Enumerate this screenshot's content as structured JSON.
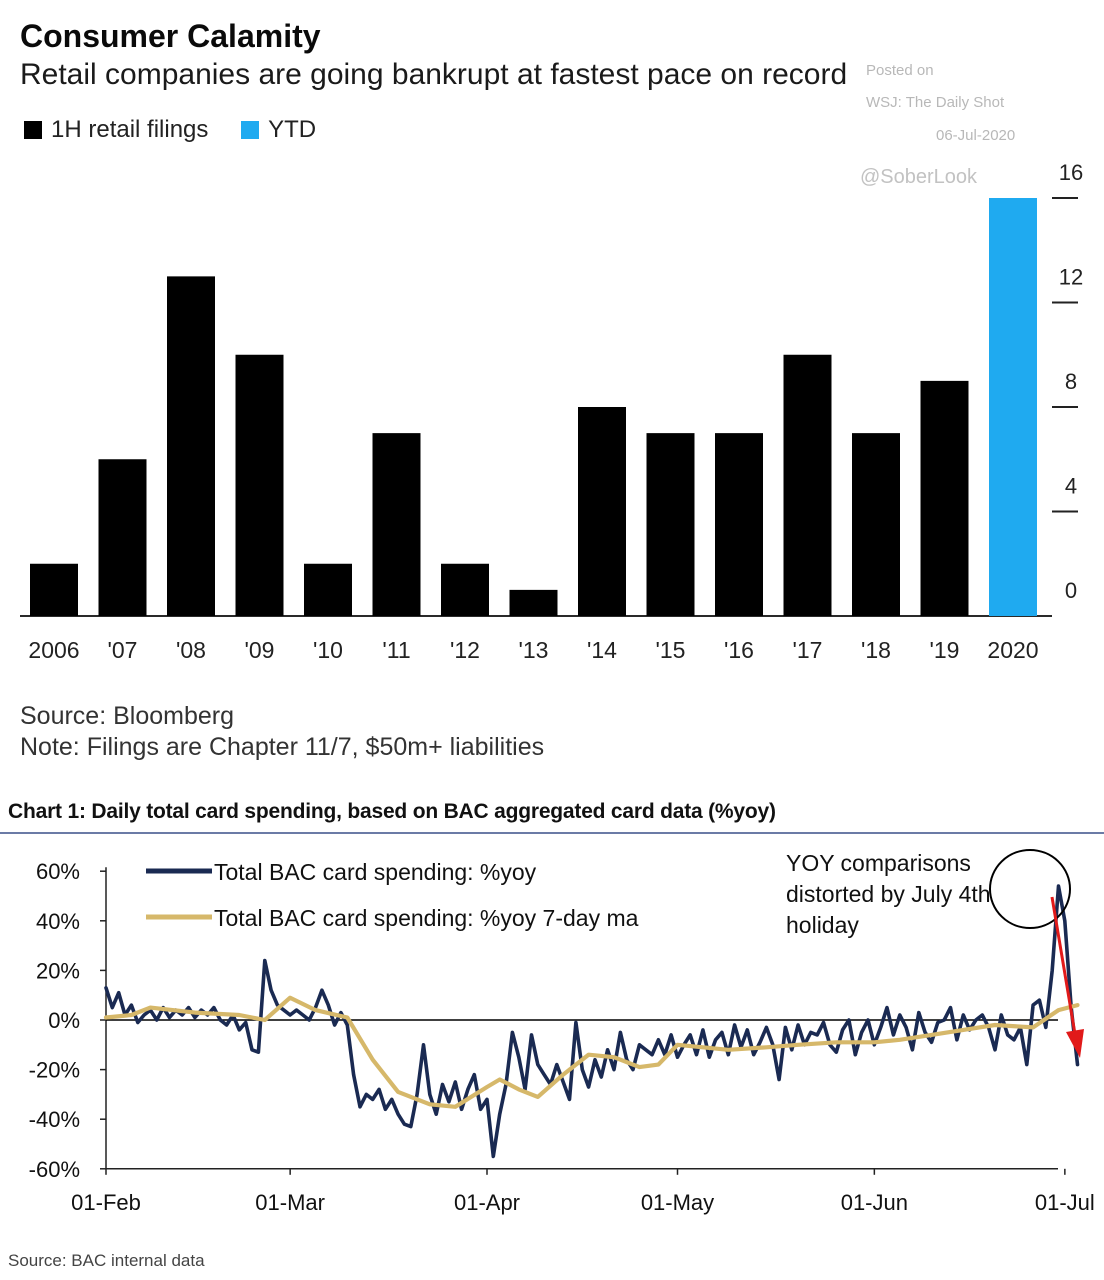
{
  "top": {
    "title": "Consumer Calamity",
    "subtitle": "Retail companies are going bankrupt at fastest pace on record",
    "watermark": {
      "posted": "Posted on",
      "wsj": "WSJ: The Daily Shot",
      "date": "06-Jul-2020",
      "handle": "@SoberLook"
    },
    "source": "Source: Bloomberg",
    "note": "Note: Filings are Chapter 11/7, $50m+ liabilities"
  },
  "bottom": {
    "title": "Chart 1: Daily total card spending, based on BAC aggregated card data (%yoy)",
    "annotation": [
      "YOY comparisons",
      "distorted by July 4th",
      "holiday"
    ],
    "source": "Source: BAC internal data"
  },
  "colors": {
    "filings": "#000000",
    "ytd": "#1faaf0",
    "daily": "#1a2a52",
    "ma": "#d6b86a",
    "arrow": "#e11a1a",
    "circle": "#000000"
  },
  "chart_data": [
    {
      "type": "bar",
      "categories": [
        "2006",
        "'07",
        "'08",
        "'09",
        "'10",
        "'11",
        "'12",
        "'13",
        "'14",
        "'15",
        "'16",
        "'17",
        "'18",
        "'19",
        "2020"
      ],
      "series": [
        {
          "name": "1H retail filings",
          "values": [
            2,
            6,
            13,
            10,
            2,
            7,
            2,
            1,
            8,
            7,
            7,
            10,
            7,
            9,
            null
          ]
        },
        {
          "name": "YTD",
          "values": [
            null,
            null,
            null,
            null,
            null,
            null,
            null,
            null,
            null,
            null,
            null,
            null,
            null,
            null,
            16
          ]
        }
      ],
      "yticks": [
        0,
        4,
        8,
        12,
        16
      ],
      "ylim": [
        0,
        16
      ],
      "xlabel": "",
      "ylabel": "",
      "legend": "top-left",
      "grid": false,
      "axis_side": "right"
    },
    {
      "type": "line",
      "x_unit": "date (2020)",
      "xticks": [
        "01-Feb",
        "01-Mar",
        "01-Apr",
        "01-May",
        "01-Jun",
        "01-Jul"
      ],
      "yticks": [
        "60%",
        "40%",
        "20%",
        "0%",
        "-20%",
        "-40%",
        "-60%"
      ],
      "ylim": [
        -60,
        60
      ],
      "legend": "top-left",
      "grid": false,
      "series": [
        {
          "name": "Total BAC card spending: %yoy",
          "points": [
            [
              "2020-02-01",
              13
            ],
            [
              "2020-02-02",
              5
            ],
            [
              "2020-02-03",
              11
            ],
            [
              "2020-02-04",
              2
            ],
            [
              "2020-02-05",
              6
            ],
            [
              "2020-02-06",
              -1
            ],
            [
              "2020-02-07",
              2
            ],
            [
              "2020-02-08",
              4
            ],
            [
              "2020-02-09",
              0
            ],
            [
              "2020-02-10",
              5
            ],
            [
              "2020-02-11",
              1
            ],
            [
              "2020-02-12",
              4
            ],
            [
              "2020-02-13",
              2
            ],
            [
              "2020-02-14",
              5
            ],
            [
              "2020-02-15",
              1
            ],
            [
              "2020-02-16",
              4
            ],
            [
              "2020-02-17",
              2
            ],
            [
              "2020-02-18",
              5
            ],
            [
              "2020-02-19",
              0
            ],
            [
              "2020-02-20",
              -2
            ],
            [
              "2020-02-21",
              2
            ],
            [
              "2020-02-22",
              -4
            ],
            [
              "2020-02-23",
              -1
            ],
            [
              "2020-02-24",
              -12
            ],
            [
              "2020-02-25",
              -13
            ],
            [
              "2020-02-26",
              24
            ],
            [
              "2020-02-27",
              12
            ],
            [
              "2020-02-28",
              6
            ],
            [
              "2020-02-29",
              4
            ],
            [
              "2020-03-01",
              2
            ],
            [
              "2020-03-02",
              4
            ],
            [
              "2020-03-03",
              2
            ],
            [
              "2020-03-04",
              0
            ],
            [
              "2020-03-05",
              5
            ],
            [
              "2020-03-06",
              12
            ],
            [
              "2020-03-07",
              6
            ],
            [
              "2020-03-08",
              -2
            ],
            [
              "2020-03-09",
              3
            ],
            [
              "2020-03-10",
              -2
            ],
            [
              "2020-03-11",
              -22
            ],
            [
              "2020-03-12",
              -35
            ],
            [
              "2020-03-13",
              -30
            ],
            [
              "2020-03-14",
              -32
            ],
            [
              "2020-03-15",
              -28
            ],
            [
              "2020-03-16",
              -36
            ],
            [
              "2020-03-17",
              -32
            ],
            [
              "2020-03-18",
              -38
            ],
            [
              "2020-03-19",
              -42
            ],
            [
              "2020-03-20",
              -43
            ],
            [
              "2020-03-21",
              -30
            ],
            [
              "2020-03-22",
              -10
            ],
            [
              "2020-03-23",
              -30
            ],
            [
              "2020-03-24",
              -38
            ],
            [
              "2020-03-25",
              -26
            ],
            [
              "2020-03-26",
              -33
            ],
            [
              "2020-03-27",
              -25
            ],
            [
              "2020-03-28",
              -36
            ],
            [
              "2020-03-29",
              -28
            ],
            [
              "2020-03-30",
              -22
            ],
            [
              "2020-03-31",
              -36
            ],
            [
              "2020-04-01",
              -32
            ],
            [
              "2020-04-02",
              -55
            ],
            [
              "2020-04-03",
              -38
            ],
            [
              "2020-04-04",
              -26
            ],
            [
              "2020-04-05",
              -5
            ],
            [
              "2020-04-06",
              -15
            ],
            [
              "2020-04-07",
              -28
            ],
            [
              "2020-04-08",
              -6
            ],
            [
              "2020-04-09",
              -18
            ],
            [
              "2020-04-10",
              -22
            ],
            [
              "2020-04-11",
              -26
            ],
            [
              "2020-04-12",
              -18
            ],
            [
              "2020-04-13",
              -25
            ],
            [
              "2020-04-14",
              -32
            ],
            [
              "2020-04-15",
              -1
            ],
            [
              "2020-04-16",
              -20
            ],
            [
              "2020-04-17",
              -27
            ],
            [
              "2020-04-18",
              -16
            ],
            [
              "2020-04-19",
              -23
            ],
            [
              "2020-04-20",
              -12
            ],
            [
              "2020-04-21",
              -20
            ],
            [
              "2020-04-22",
              -5
            ],
            [
              "2020-04-23",
              -16
            ],
            [
              "2020-04-24",
              -20
            ],
            [
              "2020-04-25",
              -10
            ],
            [
              "2020-04-26",
              -12
            ],
            [
              "2020-04-27",
              -14
            ],
            [
              "2020-04-28",
              -8
            ],
            [
              "2020-04-29",
              -14
            ],
            [
              "2020-04-30",
              -6
            ],
            [
              "2020-05-01",
              -15
            ],
            [
              "2020-05-02",
              -10
            ],
            [
              "2020-05-03",
              -6
            ],
            [
              "2020-05-04",
              -14
            ],
            [
              "2020-05-05",
              -4
            ],
            [
              "2020-05-06",
              -15
            ],
            [
              "2020-05-07",
              -8
            ],
            [
              "2020-05-08",
              -5
            ],
            [
              "2020-05-09",
              -14
            ],
            [
              "2020-05-10",
              -2
            ],
            [
              "2020-05-11",
              -11
            ],
            [
              "2020-05-12",
              -4
            ],
            [
              "2020-05-13",
              -14
            ],
            [
              "2020-05-14",
              -9
            ],
            [
              "2020-05-15",
              -3
            ],
            [
              "2020-05-16",
              -10
            ],
            [
              "2020-05-17",
              -24
            ],
            [
              "2020-05-18",
              -3
            ],
            [
              "2020-05-19",
              -12
            ],
            [
              "2020-05-20",
              -2
            ],
            [
              "2020-05-21",
              -10
            ],
            [
              "2020-05-22",
              -5
            ],
            [
              "2020-05-23",
              -6
            ],
            [
              "2020-05-24",
              -1
            ],
            [
              "2020-05-25",
              -10
            ],
            [
              "2020-05-26",
              -13
            ],
            [
              "2020-05-27",
              -4
            ],
            [
              "2020-05-28",
              0
            ],
            [
              "2020-05-29",
              -14
            ],
            [
              "2020-05-30",
              -5
            ],
            [
              "2020-05-31",
              0
            ],
            [
              "2020-06-01",
              -10
            ],
            [
              "2020-06-02",
              -3
            ],
            [
              "2020-06-03",
              5
            ],
            [
              "2020-06-04",
              -6
            ],
            [
              "2020-06-05",
              2
            ],
            [
              "2020-06-06",
              -3
            ],
            [
              "2020-06-07",
              -12
            ],
            [
              "2020-06-08",
              3
            ],
            [
              "2020-06-09",
              -5
            ],
            [
              "2020-06-10",
              -9
            ],
            [
              "2020-06-11",
              -1
            ],
            [
              "2020-06-12",
              0
            ],
            [
              "2020-06-13",
              5
            ],
            [
              "2020-06-14",
              -8
            ],
            [
              "2020-06-15",
              2
            ],
            [
              "2020-06-16",
              -4
            ],
            [
              "2020-06-17",
              0
            ],
            [
              "2020-06-18",
              2
            ],
            [
              "2020-06-19",
              -3
            ],
            [
              "2020-06-20",
              -12
            ],
            [
              "2020-06-21",
              2
            ],
            [
              "2020-06-22",
              -6
            ],
            [
              "2020-06-23",
              -8
            ],
            [
              "2020-06-24",
              -3
            ],
            [
              "2020-06-25",
              -18
            ],
            [
              "2020-06-26",
              6
            ],
            [
              "2020-06-27",
              8
            ],
            [
              "2020-06-28",
              -3
            ],
            [
              "2020-06-29",
              20
            ],
            [
              "2020-06-30",
              54
            ],
            [
              "2020-07-01",
              40
            ],
            [
              "2020-07-02",
              5
            ],
            [
              "2020-07-03",
              -18
            ]
          ]
        },
        {
          "name": "Total BAC card spending: %yoy 7-day ma",
          "points": [
            [
              "2020-02-01",
              1
            ],
            [
              "2020-02-05",
              2
            ],
            [
              "2020-02-08",
              5
            ],
            [
              "2020-02-15",
              3
            ],
            [
              "2020-02-22",
              2
            ],
            [
              "2020-02-26",
              0
            ],
            [
              "2020-03-01",
              9
            ],
            [
              "2020-03-05",
              4
            ],
            [
              "2020-03-10",
              1
            ],
            [
              "2020-03-14",
              -16
            ],
            [
              "2020-03-18",
              -29
            ],
            [
              "2020-03-23",
              -34
            ],
            [
              "2020-03-27",
              -35
            ],
            [
              "2020-04-01",
              -27
            ],
            [
              "2020-04-03",
              -24
            ],
            [
              "2020-04-06",
              -28
            ],
            [
              "2020-04-09",
              -31
            ],
            [
              "2020-04-13",
              -22
            ],
            [
              "2020-04-17",
              -14
            ],
            [
              "2020-04-21",
              -15
            ],
            [
              "2020-04-25",
              -19
            ],
            [
              "2020-04-28",
              -18
            ],
            [
              "2020-05-01",
              -10
            ],
            [
              "2020-05-05",
              -11
            ],
            [
              "2020-05-09",
              -12
            ],
            [
              "2020-05-15",
              -11
            ],
            [
              "2020-05-20",
              -10
            ],
            [
              "2020-05-26",
              -9
            ],
            [
              "2020-06-01",
              -9
            ],
            [
              "2020-06-05",
              -8
            ],
            [
              "2020-06-10",
              -6
            ],
            [
              "2020-06-15",
              -4
            ],
            [
              "2020-06-20",
              -2
            ],
            [
              "2020-06-26",
              -3
            ],
            [
              "2020-06-30",
              4
            ],
            [
              "2020-07-03",
              6
            ]
          ]
        }
      ]
    }
  ]
}
